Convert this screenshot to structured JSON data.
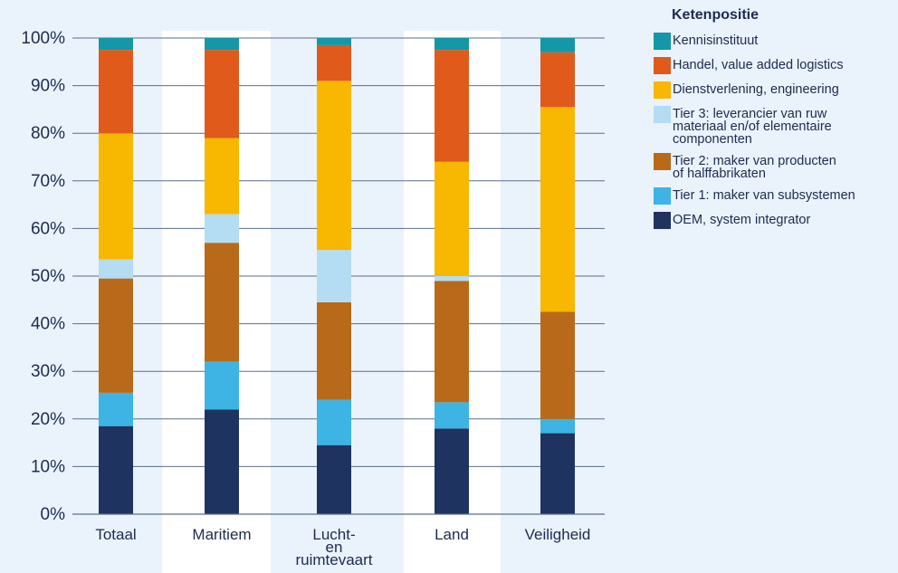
{
  "chart_data": {
    "type": "bar",
    "stacked": true,
    "categories": [
      "Totaal",
      "Maritiem",
      "Lucht- en ruimtevaart",
      "Land",
      "Veiligheid"
    ],
    "category_label_lines": [
      [
        "Totaal"
      ],
      [
        "Maritiem"
      ],
      [
        "Lucht-",
        "en",
        "ruimtevaart"
      ],
      [
        "Land"
      ],
      [
        "Veiligheid"
      ]
    ],
    "ylim": [
      0,
      100
    ],
    "yticks": [
      "0%",
      "10%",
      "20%",
      "30%",
      "40%",
      "50%",
      "60%",
      "70%",
      "80%",
      "90%",
      "100%"
    ],
    "grid": true,
    "legend_title": "Ketenpositie",
    "legend_position": "right",
    "series": [
      {
        "name": "OEM, system integrator",
        "color": "#1f3360",
        "values": [
          18.5,
          22,
          14.5,
          18,
          17
        ]
      },
      {
        "name": "Tier 1: maker van subsystemen",
        "color": "#3db4e3",
        "values": [
          7,
          10,
          9.5,
          5.5,
          3
        ]
      },
      {
        "name": "Tier 2: maker van producten of halffabrikaten",
        "color": "#b86a1a",
        "values": [
          24,
          25,
          20.5,
          25.5,
          22.5
        ]
      },
      {
        "name": "Tier 3: leverancier van ruw materiaal en/of elementaire componenten",
        "color": "#b4dcf3",
        "values": [
          4,
          6,
          11,
          1,
          0
        ]
      },
      {
        "name": "Dienstverlening, engineering",
        "color": "#f8b700",
        "values": [
          26.5,
          16,
          35.5,
          24,
          43
        ]
      },
      {
        "name": "Handel, value added logistics",
        "color": "#e05a1c",
        "values": [
          17.5,
          18.5,
          7.5,
          23.5,
          11.5
        ]
      },
      {
        "name": "Kennisinstituut",
        "color": "#1497a6",
        "values": [
          2.5,
          2.5,
          1.5,
          2.5,
          3
        ]
      }
    ]
  },
  "legend_items": [
    {
      "label": "Kennisinstituut",
      "label_lines": [
        "Kennisinstituut"
      ],
      "color": "#1497a6"
    },
    {
      "label": "Handel, value added logistics",
      "label_lines": [
        "Handel, value added logistics"
      ],
      "color": "#e05a1c"
    },
    {
      "label": "Dienstverlening, engineering",
      "label_lines": [
        "Dienstverlening, engineering"
      ],
      "color": "#f8b700"
    },
    {
      "label": "Tier 3: leverancier van ruw materiaal en/of elementaire componenten",
      "label_lines": [
        "Tier 3: leverancier van ruw",
        "materiaal en/of elementaire",
        "componenten"
      ],
      "color": "#b4dcf3"
    },
    {
      "label": "Tier 2: maker van producten of halffabrikaten",
      "label_lines": [
        "Tier 2: maker van producten",
        "of halffabrikaten"
      ],
      "color": "#b86a1a"
    },
    {
      "label": "Tier 1: maker van subsystemen",
      "label_lines": [
        "Tier 1: maker van subsystemen"
      ],
      "color": "#3db4e3"
    },
    {
      "label": "OEM, system integrator",
      "label_lines": [
        "OEM, system integrator"
      ],
      "color": "#1f3360"
    }
  ],
  "colors": {
    "background": "#eaf2fb",
    "band": "#ffffff",
    "grid": "#5c6e8a",
    "text": "#1d2b4f"
  }
}
